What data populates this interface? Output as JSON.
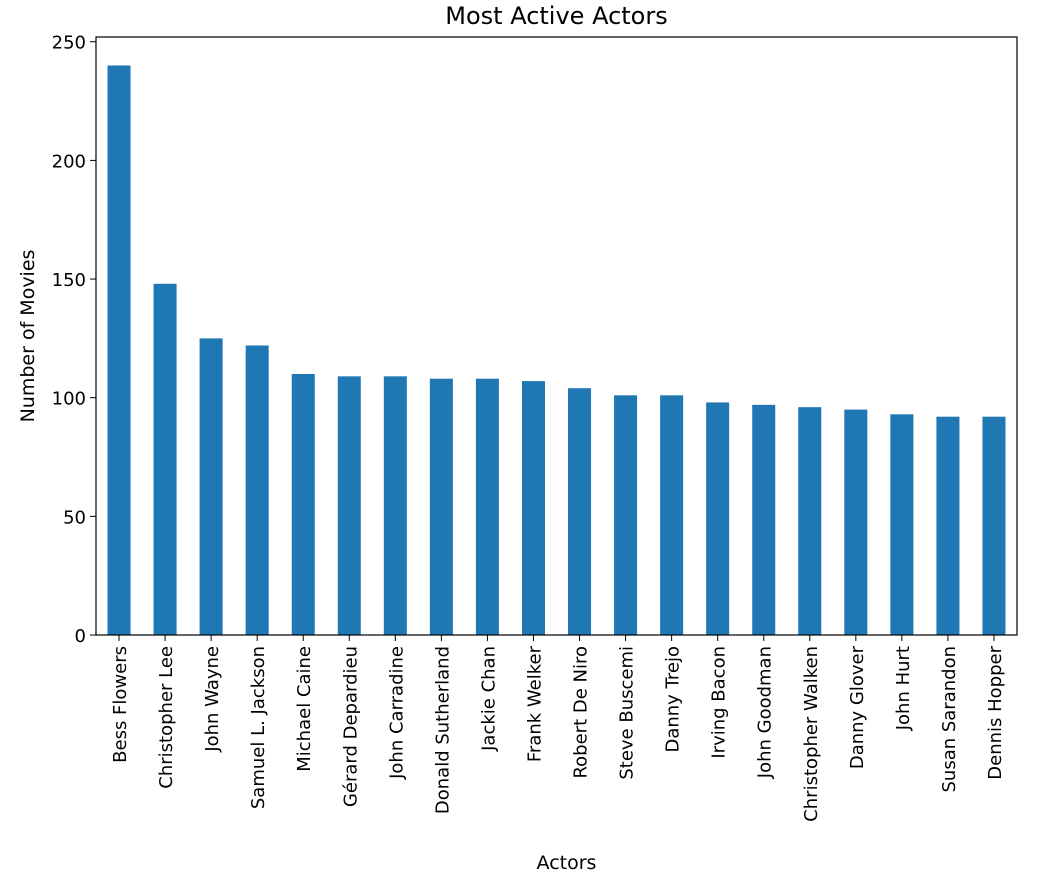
{
  "chart_data": {
    "type": "bar",
    "title": "Most Active Actors",
    "xlabel": "Actors",
    "ylabel": "Number of Movies",
    "categories": [
      "Bess Flowers",
      "Christopher Lee",
      "John Wayne",
      "Samuel L. Jackson",
      "Michael Caine",
      "Gérard Depardieu",
      "John Carradine",
      "Donald Sutherland",
      "Jackie Chan",
      "Frank Welker",
      "Robert De Niro",
      "Steve Buscemi",
      "Danny Trejo",
      "Irving Bacon",
      "John Goodman",
      "Christopher Walken",
      "Danny Glover",
      "John Hurt",
      "Susan Sarandon",
      "Dennis Hopper"
    ],
    "values": [
      240,
      148,
      125,
      122,
      110,
      109,
      109,
      108,
      108,
      107,
      104,
      101,
      101,
      98,
      97,
      96,
      95,
      93,
      92,
      92
    ],
    "ylim": [
      0,
      252
    ],
    "yticks": [
      0,
      50,
      100,
      150,
      200,
      250
    ],
    "grid": false,
    "bar_color": "#1f77b4"
  }
}
